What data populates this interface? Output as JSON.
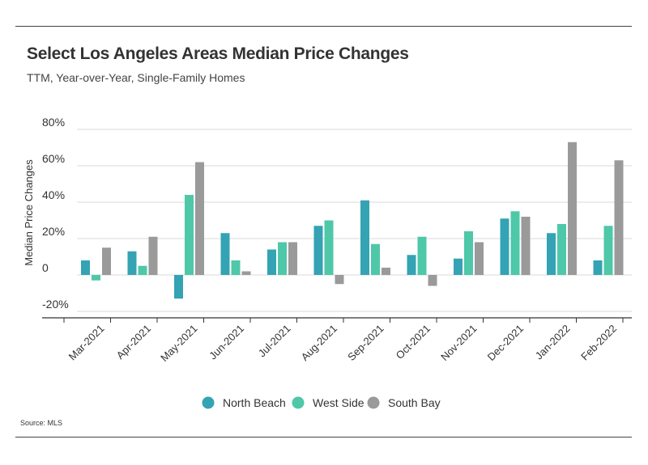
{
  "header": {
    "title": "Select Los Angeles Areas Median Price Changes",
    "subtitle": "TTM, Year-over-Year, Single-Family Homes"
  },
  "footer": {
    "source": "Source:  MLS"
  },
  "chart_data": {
    "type": "bar",
    "title": "Select Los Angeles Areas Median Price Changes",
    "subtitle": "TTM, Year-over-Year, Single-Family Homes",
    "xlabel": "",
    "ylabel": "Median Price Changes",
    "ylim": [
      -20,
      80
    ],
    "y_ticks": [
      {
        "value": 80,
        "label": "80%"
      },
      {
        "value": 60,
        "label": "60%"
      },
      {
        "value": 40,
        "label": "40%"
      },
      {
        "value": 20,
        "label": "20%"
      },
      {
        "value": 0,
        "label": "0"
      },
      {
        "value": -20,
        "label": "-20%"
      }
    ],
    "categories": [
      "Mar-2021",
      "Apr-2021",
      "May-2021",
      "Jun-2021",
      "Jul-2021",
      "Aug-2021",
      "Sep-2021",
      "Oct-2021",
      "Nov-2021",
      "Dec-2021",
      "Jan-2022",
      "Feb-2022"
    ],
    "series": [
      {
        "name": "North Beach",
        "color": "#34a3b4",
        "values": [
          8,
          13,
          -13,
          23,
          14,
          27,
          41,
          11,
          9,
          31,
          23,
          8
        ]
      },
      {
        "name": "West Side",
        "color": "#4ec8a8",
        "values": [
          -3,
          5,
          44,
          8,
          18,
          30,
          17,
          21,
          24,
          35,
          28,
          27
        ]
      },
      {
        "name": "South Bay",
        "color": "#9a9a9a",
        "values": [
          15,
          21,
          62,
          2,
          18,
          -5,
          4,
          -6,
          18,
          32,
          73,
          63
        ]
      }
    ],
    "grid": true,
    "legend_position": "bottom"
  }
}
